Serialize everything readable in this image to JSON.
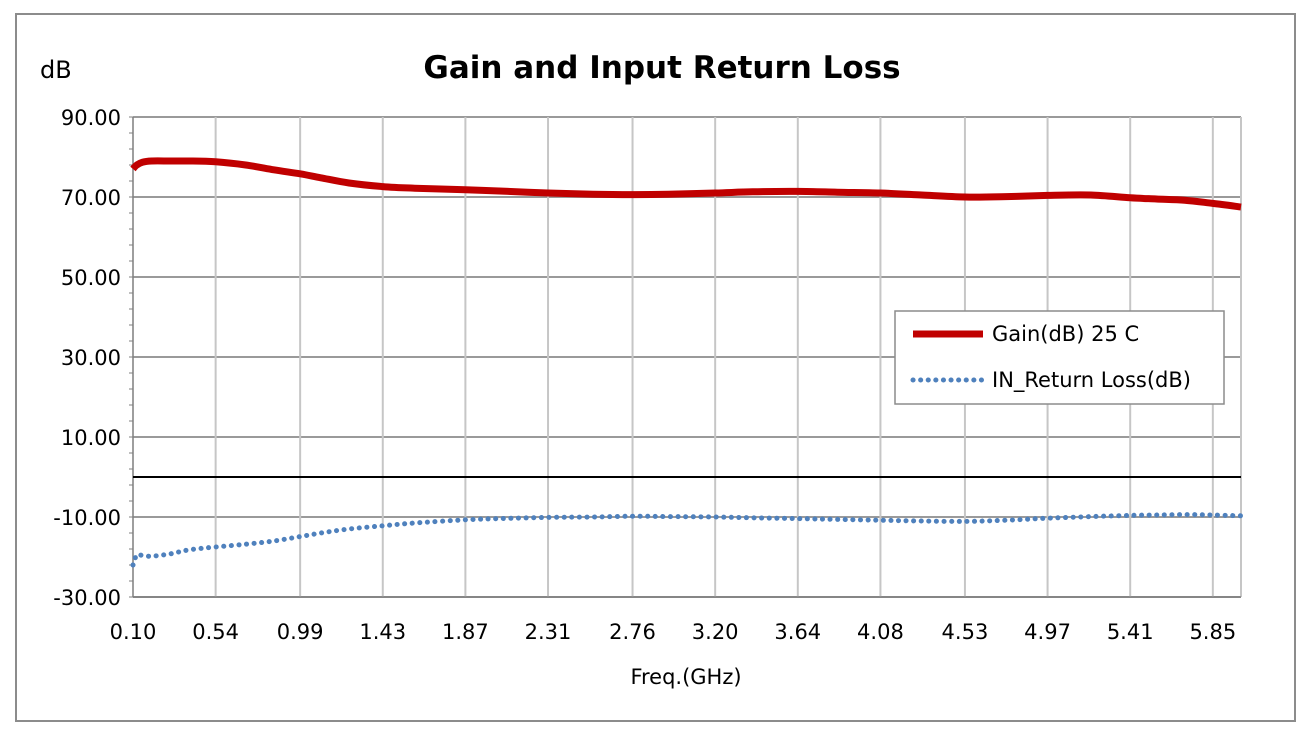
{
  "chart_data": {
    "type": "line",
    "title": "Gain and Input Return Loss",
    "ylabel": "dB",
    "xlabel": "Freq.(GHz)",
    "ylim": [
      -30,
      90
    ],
    "xlim": [
      0.1,
      6.0
    ],
    "x_ticks": [
      "0.10",
      "0.54",
      "0.99",
      "1.43",
      "1.87",
      "2.31",
      "2.76",
      "3.20",
      "3.64",
      "4.08",
      "4.53",
      "4.97",
      "5.41",
      "5.85"
    ],
    "y_ticks": [
      "90.00",
      "70.00",
      "50.00",
      "30.00",
      "10.00",
      "-10.00",
      "-30.00"
    ],
    "y_tick_values": [
      90,
      70,
      50,
      30,
      10,
      -10,
      -30
    ],
    "x_tick_values": [
      0.1,
      0.54,
      0.99,
      1.43,
      1.87,
      2.31,
      2.76,
      3.2,
      3.64,
      4.08,
      4.53,
      4.97,
      5.41,
      5.85
    ],
    "reference_line_y": 0,
    "grid": true,
    "legend_position": "right",
    "series": [
      {
        "name": "Gain(dB) 25 C",
        "color": "#c00000",
        "style": "solid",
        "x": [
          0.1,
          0.12,
          0.15,
          0.2,
          0.3,
          0.4,
          0.54,
          0.7,
          0.85,
          0.99,
          1.1,
          1.25,
          1.43,
          1.6,
          1.87,
          2.05,
          2.31,
          2.55,
          2.76,
          2.95,
          3.2,
          3.4,
          3.64,
          3.85,
          4.08,
          4.3,
          4.53,
          4.75,
          4.97,
          5.2,
          5.41,
          5.55,
          5.7,
          5.85,
          6.0
        ],
        "y": [
          77,
          78,
          78.7,
          79,
          79,
          79,
          78.8,
          78,
          76.8,
          75.8,
          74.8,
          73.5,
          72.6,
          72.2,
          71.8,
          71.5,
          71,
          70.7,
          70.6,
          70.7,
          71,
          71.3,
          71.4,
          71.2,
          71,
          70.5,
          70,
          70.1,
          70.4,
          70.5,
          69.8,
          69.5,
          69.2,
          68.4,
          67.5
        ]
      },
      {
        "name": "IN_Return Loss(dB)",
        "color": "#4f81bd",
        "style": "dotted",
        "x": [
          0.1,
          0.12,
          0.15,
          0.2,
          0.3,
          0.4,
          0.54,
          0.7,
          0.85,
          0.99,
          1.1,
          1.25,
          1.43,
          1.6,
          1.87,
          2.05,
          2.31,
          2.55,
          2.76,
          2.95,
          3.2,
          3.4,
          3.64,
          3.85,
          4.08,
          4.3,
          4.53,
          4.75,
          4.97,
          5.2,
          5.41,
          5.55,
          5.7,
          5.85,
          6.0
        ],
        "y": [
          -22,
          -19.5,
          -19.6,
          -19.8,
          -19.2,
          -18.2,
          -17.5,
          -16.8,
          -16,
          -14.9,
          -14,
          -13,
          -12.2,
          -11.5,
          -10.7,
          -10.4,
          -10.1,
          -10,
          -9.8,
          -9.9,
          -10,
          -10.2,
          -10.4,
          -10.6,
          -10.8,
          -11,
          -11.1,
          -10.8,
          -10.3,
          -9.9,
          -9.6,
          -9.5,
          -9.4,
          -9.5,
          -9.7
        ]
      }
    ]
  }
}
